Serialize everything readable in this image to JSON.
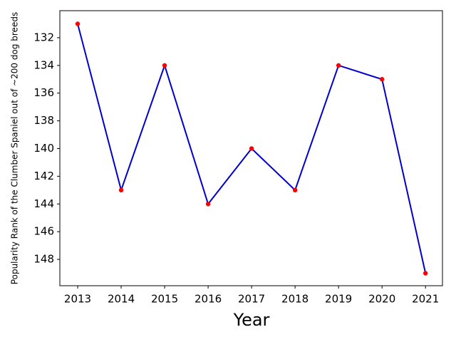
{
  "chart_data": {
    "type": "line",
    "x_label": "Year",
    "y_label": "Popularity Rank of the Clumber Spaniel out of ~200 dog breeds",
    "x": [
      2013,
      2014,
      2015,
      2016,
      2017,
      2018,
      2019,
      2020,
      2021
    ],
    "series": [
      {
        "color": "#0000cc",
        "marker_color": "#ff0000",
        "values": [
          131,
          143,
          134,
          144,
          140,
          143,
          134,
          135,
          149
        ]
      }
    ],
    "xlim": [
      2012.59,
      2021.39
    ],
    "xticks": [
      2013,
      2014,
      2015,
      2016,
      2017,
      2018,
      2019,
      2020,
      2021
    ],
    "ylim": [
      149.9,
      130.05
    ],
    "yticks": [
      132,
      134,
      136,
      138,
      140,
      142,
      144,
      146,
      148
    ]
  }
}
